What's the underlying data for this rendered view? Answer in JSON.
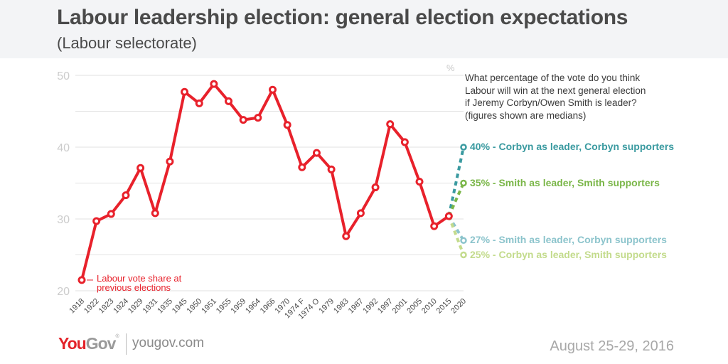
{
  "header": {
    "title": "Labour leadership election: general election expectations",
    "subtitle": "(Labour selectorate)"
  },
  "question": {
    "lines": [
      "What percentage of the vote do you think",
      "Labour will win at the next general election",
      "if Jeremy Corbyn/Owen Smith is leader?",
      "(figures shown are medians)"
    ]
  },
  "footer": {
    "brand_you": "You",
    "brand_gov": "Gov",
    "brand_reg": "®",
    "url": "yougov.com",
    "date": "August 25-29, 2016"
  },
  "chart_data": {
    "type": "line",
    "title": "Labour leadership election: general election expectations",
    "subtitle": "(Labour selectorate)",
    "xlabel": "",
    "ylabel": "%",
    "ylim": [
      20,
      50
    ],
    "yticks": [
      20,
      30,
      40,
      50
    ],
    "grid": true,
    "categories": [
      "1918",
      "1922",
      "1923",
      "1924",
      "1929",
      "1931",
      "1935",
      "1945",
      "1950",
      "1951",
      "1955",
      "1959",
      "1964",
      "1966",
      "1970",
      "1974 F",
      "1974 O",
      "1979",
      "1983",
      "1987",
      "1992",
      "1997",
      "2001",
      "2005",
      "2010",
      "2015",
      "2020"
    ],
    "series": [
      {
        "name": "Labour vote share at previous elections",
        "color": "#e8212b",
        "values": [
          21.5,
          29.7,
          30.7,
          33.3,
          37.1,
          30.8,
          38.0,
          47.7,
          46.1,
          48.8,
          46.4,
          43.8,
          44.1,
          48.0,
          43.1,
          37.2,
          39.2,
          36.9,
          27.6,
          30.8,
          34.4,
          43.2,
          40.7,
          35.2,
          29.0,
          30.4,
          null
        ],
        "annotation": "Labour vote share at previous elections"
      }
    ],
    "projections": [
      {
        "label": "40% - Corbyn as leader, Corbyn supporters",
        "from": "2015",
        "to": "2020",
        "value": 40,
        "color": "#3a9aa0"
      },
      {
        "label": "35% - Smith as leader, Smith supporters",
        "from": "2015",
        "to": "2020",
        "value": 35,
        "color": "#7ab648"
      },
      {
        "label": "27% - Smith as leader, Corbyn supporters",
        "from": "2015",
        "to": "2020",
        "value": 27,
        "color": "#8cc4cc"
      },
      {
        "label": "25% - Corbyn as leader, Smith supporters",
        "from": "2015",
        "to": "2020",
        "value": 25,
        "color": "#c3db8c"
      }
    ],
    "unit_label": "%",
    "colors": {
      "grid": "#e2e2e2",
      "tick_text": "#cccccc",
      "axis_text": "#4a4a4a"
    }
  }
}
